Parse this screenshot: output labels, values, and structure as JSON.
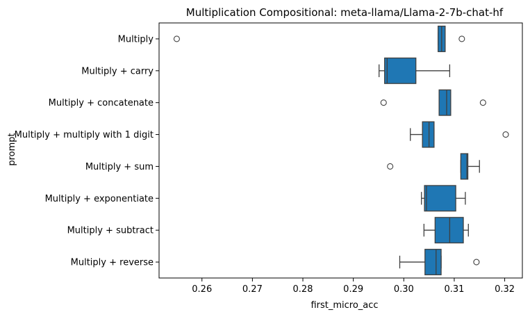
{
  "chart_data": {
    "type": "boxplot",
    "orientation": "horizontal",
    "title": "Multiplication Compositional: meta-llama/Llama-2-7b-chat-hf",
    "xlabel": "first_micro_acc",
    "ylabel": "prompt",
    "xlim": [
      0.2515,
      0.3235
    ],
    "xticks": [
      0.26,
      0.27,
      0.28,
      0.29,
      0.3,
      0.31,
      0.32
    ],
    "xtick_labels": [
      "0.26",
      "0.27",
      "0.28",
      "0.29",
      "0.30",
      "0.31",
      "0.32"
    ],
    "box_color": "#1f77b4",
    "edge_color": "#3f3f3f",
    "grid": false,
    "categories": [
      "Multiply",
      "Multiply + carry",
      "Multiply + concatenate",
      "Multiply + multiply with 1 digit",
      "Multiply + sum",
      "Multiply + exponentiate",
      "Multiply + subtract",
      "Multiply + reverse"
    ],
    "boxes": [
      {
        "whislo": 0.3068,
        "q1": 0.3068,
        "med": 0.3075,
        "q3": 0.3082,
        "whishi": 0.3082,
        "fliers": [
          0.255,
          0.3115
        ]
      },
      {
        "whislo": 0.2951,
        "q1": 0.2962,
        "med": 0.2967,
        "q3": 0.3024,
        "whishi": 0.3091,
        "fliers": []
      },
      {
        "whislo": 0.307,
        "q1": 0.307,
        "med": 0.3085,
        "q3": 0.3093,
        "whishi": 0.3093,
        "fliers": [
          0.296,
          0.3157
        ]
      },
      {
        "whislo": 0.3013,
        "q1": 0.3037,
        "med": 0.305,
        "q3": 0.306,
        "whishi": 0.306,
        "fliers": [
          0.3202
        ]
      },
      {
        "whislo": 0.3113,
        "q1": 0.3113,
        "med": 0.3125,
        "q3": 0.3127,
        "whishi": 0.315,
        "fliers": [
          0.2973
        ]
      },
      {
        "whislo": 0.3035,
        "q1": 0.3041,
        "med": 0.3045,
        "q3": 0.3103,
        "whishi": 0.3122,
        "fliers": []
      },
      {
        "whislo": 0.304,
        "q1": 0.3062,
        "med": 0.3091,
        "q3": 0.3118,
        "whishi": 0.3128,
        "fliers": []
      },
      {
        "whislo": 0.2992,
        "q1": 0.3042,
        "med": 0.3064,
        "q3": 0.3074,
        "whishi": 0.3074,
        "fliers": [
          0.3144
        ]
      }
    ]
  }
}
